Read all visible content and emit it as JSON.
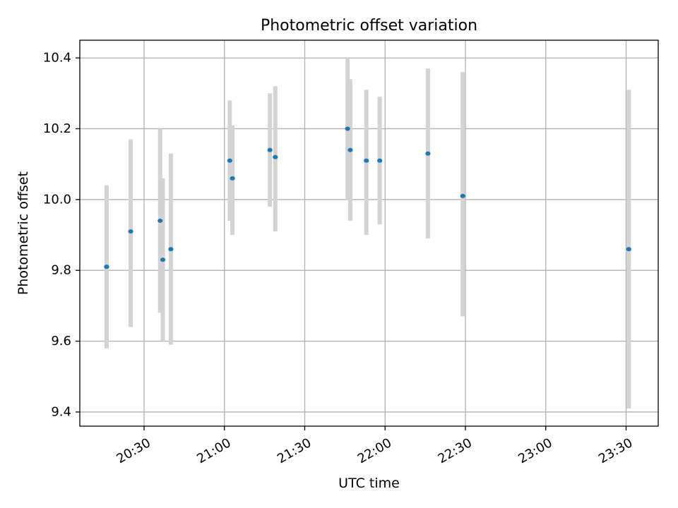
{
  "chart_data": {
    "type": "scatter",
    "title": "Photometric offset variation",
    "xlabel": "UTC time",
    "ylabel": "Photometric offset",
    "xlim": [
      "20:06",
      "23:42"
    ],
    "ylim": [
      9.36,
      10.45
    ],
    "xticks": [
      "20:30",
      "21:00",
      "21:30",
      "22:00",
      "22:30",
      "23:00",
      "23:30"
    ],
    "yticks": [
      9.4,
      9.6,
      9.8,
      10.0,
      10.2,
      10.4
    ],
    "ytick_labels": [
      "9.4",
      "9.6",
      "9.8",
      "10.0",
      "10.2",
      "10.4"
    ],
    "grid": true,
    "colors": {
      "points": "#1f77b4",
      "errorbars": "#d3d3d3",
      "grid": "#b0b0b0"
    },
    "points": [
      {
        "x": "20:16",
        "y": 9.81,
        "err_low": 9.58,
        "err_high": 10.04
      },
      {
        "x": "20:16",
        "y": 9.81,
        "err_low": 9.58,
        "err_high": 10.04
      },
      {
        "x": "20:25",
        "y": 9.91,
        "err_low": 9.64,
        "err_high": 10.17
      },
      {
        "x": "20:36",
        "y": 9.94,
        "err_low": 9.68,
        "err_high": 10.2
      },
      {
        "x": "20:37",
        "y": 9.83,
        "err_low": 9.6,
        "err_high": 10.06
      },
      {
        "x": "20:40",
        "y": 9.86,
        "err_low": 9.59,
        "err_high": 10.13
      },
      {
        "x": "21:02",
        "y": 10.11,
        "err_low": 9.94,
        "err_high": 10.28
      },
      {
        "x": "21:03",
        "y": 10.06,
        "err_low": 9.9,
        "err_high": 10.21
      },
      {
        "x": "21:17",
        "y": 10.14,
        "err_low": 9.98,
        "err_high": 10.3
      },
      {
        "x": "21:19",
        "y": 10.12,
        "err_low": 9.91,
        "err_high": 10.32
      },
      {
        "x": "21:46",
        "y": 10.2,
        "err_low": 10.0,
        "err_high": 10.4
      },
      {
        "x": "21:47",
        "y": 10.14,
        "err_low": 9.94,
        "err_high": 10.34
      },
      {
        "x": "21:53",
        "y": 10.11,
        "err_low": 9.9,
        "err_high": 10.31
      },
      {
        "x": "21:58",
        "y": 10.11,
        "err_low": 9.93,
        "err_high": 10.29
      },
      {
        "x": "22:16",
        "y": 10.13,
        "err_low": 9.89,
        "err_high": 10.37
      },
      {
        "x": "22:29",
        "y": 10.01,
        "err_low": 9.67,
        "err_high": 10.36
      },
      {
        "x": "23:31",
        "y": 9.86,
        "err_low": 9.41,
        "err_high": 10.31
      }
    ]
  }
}
